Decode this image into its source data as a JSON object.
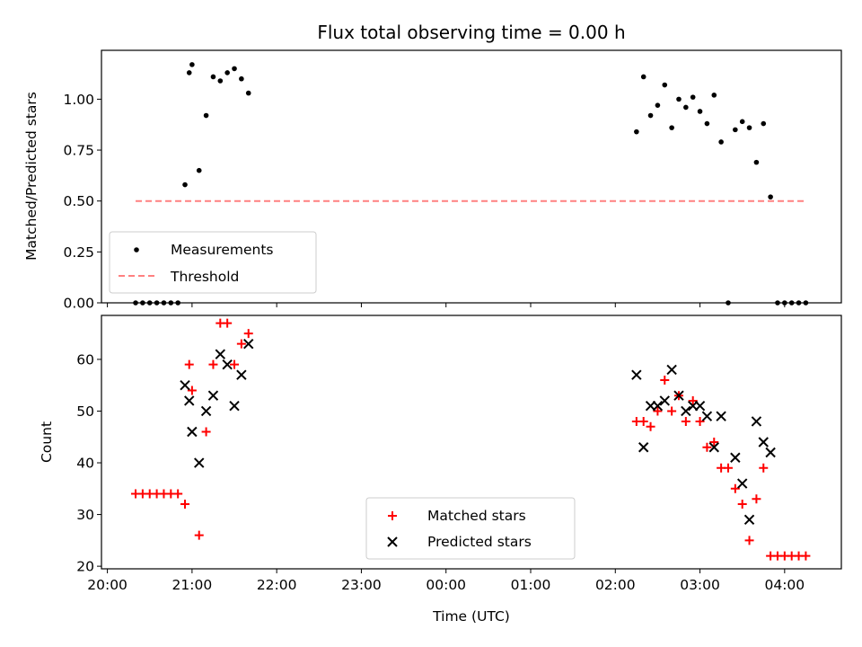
{
  "figure": {
    "title": "Flux total observing time = 0.00 h"
  },
  "colors": {
    "measurement": "#000000",
    "threshold": "#ff8080",
    "matched": "#ff0000",
    "predicted": "#000000",
    "axis": "#000000"
  },
  "chart_data": [
    {
      "type": "scatter",
      "panel": "top",
      "title": "Flux total observing time = 0.00 h",
      "xlabel": "",
      "ylabel": "Matched/Predicted stars",
      "xlim_hours": [
        19.93,
        28.67
      ],
      "ylim": [
        0,
        1.24
      ],
      "y_ticks": [
        "0.00",
        "0.25",
        "0.50",
        "0.75",
        "1.00"
      ],
      "x_ticks": [
        "20:00",
        "21:00",
        "22:00",
        "23:00",
        "00:00",
        "01:00",
        "02:00",
        "03:00",
        "04:00"
      ],
      "legend_position": "lower-left",
      "series": [
        {
          "name": "Measurements",
          "marker": "dot",
          "color": "#000000",
          "points": [
            [
              "20:20",
              0.0
            ],
            [
              "20:25",
              0.0
            ],
            [
              "20:30",
              0.0
            ],
            [
              "20:35",
              0.0
            ],
            [
              "20:40",
              0.0
            ],
            [
              "20:45",
              0.0
            ],
            [
              "20:50",
              0.0
            ],
            [
              "20:55",
              0.58
            ],
            [
              "20:58",
              1.13
            ],
            [
              "21:00",
              1.17
            ],
            [
              "21:05",
              0.65
            ],
            [
              "21:10",
              0.92
            ],
            [
              "21:15",
              1.11
            ],
            [
              "21:20",
              1.09
            ],
            [
              "21:25",
              1.13
            ],
            [
              "21:30",
              1.15
            ],
            [
              "21:35",
              1.1
            ],
            [
              "21:40",
              1.03
            ],
            [
              "02:15",
              0.84
            ],
            [
              "02:20",
              1.11
            ],
            [
              "02:25",
              0.92
            ],
            [
              "02:30",
              0.97
            ],
            [
              "02:35",
              1.07
            ],
            [
              "02:40",
              0.86
            ],
            [
              "02:45",
              1.0
            ],
            [
              "02:50",
              0.96
            ],
            [
              "02:55",
              1.01
            ],
            [
              "03:00",
              0.94
            ],
            [
              "03:05",
              0.88
            ],
            [
              "03:10",
              1.02
            ],
            [
              "03:15",
              0.79
            ],
            [
              "03:20",
              0.0
            ],
            [
              "03:25",
              0.85
            ],
            [
              "03:30",
              0.89
            ],
            [
              "03:35",
              0.86
            ],
            [
              "03:40",
              0.69
            ],
            [
              "03:45",
              0.88
            ],
            [
              "03:50",
              0.52
            ],
            [
              "03:55",
              0.0
            ],
            [
              "04:00",
              0.0
            ],
            [
              "04:05",
              0.0
            ],
            [
              "04:10",
              0.0
            ],
            [
              "04:15",
              0.0
            ]
          ]
        },
        {
          "name": "Threshold",
          "style": "dashed-line",
          "color": "#ff8080",
          "x_range": [
            "20:20",
            "04:15"
          ],
          "value": 0.5
        }
      ]
    },
    {
      "type": "scatter",
      "panel": "bottom",
      "xlabel": "Time (UTC)",
      "ylabel": "Count",
      "xlim_hours": [
        19.93,
        28.67
      ],
      "ylim": [
        19.5,
        68.5
      ],
      "y_ticks": [
        "20",
        "30",
        "40",
        "50",
        "60"
      ],
      "x_ticks": [
        "20:00",
        "21:00",
        "22:00",
        "23:00",
        "00:00",
        "01:00",
        "02:00",
        "03:00",
        "04:00"
      ],
      "legend_position": "lower-center",
      "series": [
        {
          "name": "Matched stars",
          "marker": "plus",
          "color": "#ff0000",
          "points": [
            [
              "20:20",
              34
            ],
            [
              "20:25",
              34
            ],
            [
              "20:30",
              34
            ],
            [
              "20:35",
              34
            ],
            [
              "20:40",
              34
            ],
            [
              "20:45",
              34
            ],
            [
              "20:50",
              34
            ],
            [
              "20:55",
              32
            ],
            [
              "20:58",
              59
            ],
            [
              "21:00",
              54
            ],
            [
              "21:05",
              26
            ],
            [
              "21:10",
              46
            ],
            [
              "21:15",
              59
            ],
            [
              "21:20",
              67
            ],
            [
              "21:25",
              67
            ],
            [
              "21:30",
              59
            ],
            [
              "21:35",
              63
            ],
            [
              "21:40",
              65
            ],
            [
              "02:15",
              48
            ],
            [
              "02:20",
              48
            ],
            [
              "02:25",
              47
            ],
            [
              "02:30",
              50
            ],
            [
              "02:35",
              56
            ],
            [
              "02:40",
              50
            ],
            [
              "02:45",
              53
            ],
            [
              "02:50",
              48
            ],
            [
              "02:55",
              52
            ],
            [
              "03:00",
              48
            ],
            [
              "03:05",
              43
            ],
            [
              "03:10",
              44
            ],
            [
              "03:15",
              39
            ],
            [
              "03:20",
              39
            ],
            [
              "03:25",
              35
            ],
            [
              "03:30",
              32
            ],
            [
              "03:35",
              25
            ],
            [
              "03:40",
              33
            ],
            [
              "03:45",
              39
            ],
            [
              "03:50",
              22
            ],
            [
              "03:55",
              22
            ],
            [
              "04:00",
              22
            ],
            [
              "04:05",
              22
            ],
            [
              "04:10",
              22
            ],
            [
              "04:15",
              22
            ]
          ]
        },
        {
          "name": "Predicted stars",
          "marker": "x",
          "color": "#000000",
          "points": [
            [
              "20:55",
              55
            ],
            [
              "20:58",
              52
            ],
            [
              "21:00",
              46
            ],
            [
              "21:05",
              40
            ],
            [
              "21:10",
              50
            ],
            [
              "21:15",
              53
            ],
            [
              "21:20",
              61
            ],
            [
              "21:25",
              59
            ],
            [
              "21:30",
              51
            ],
            [
              "21:35",
              57
            ],
            [
              "21:40",
              63
            ],
            [
              "02:15",
              57
            ],
            [
              "02:20",
              43
            ],
            [
              "02:25",
              51
            ],
            [
              "02:30",
              51
            ],
            [
              "02:35",
              52
            ],
            [
              "02:40",
              58
            ],
            [
              "02:45",
              53
            ],
            [
              "02:50",
              50
            ],
            [
              "02:55",
              51
            ],
            [
              "03:00",
              51
            ],
            [
              "03:05",
              49
            ],
            [
              "03:10",
              43
            ],
            [
              "03:15",
              49
            ],
            [
              "03:25",
              41
            ],
            [
              "03:30",
              36
            ],
            [
              "03:35",
              29
            ],
            [
              "03:40",
              48
            ],
            [
              "03:45",
              44
            ],
            [
              "03:50",
              42
            ]
          ]
        }
      ]
    }
  ]
}
